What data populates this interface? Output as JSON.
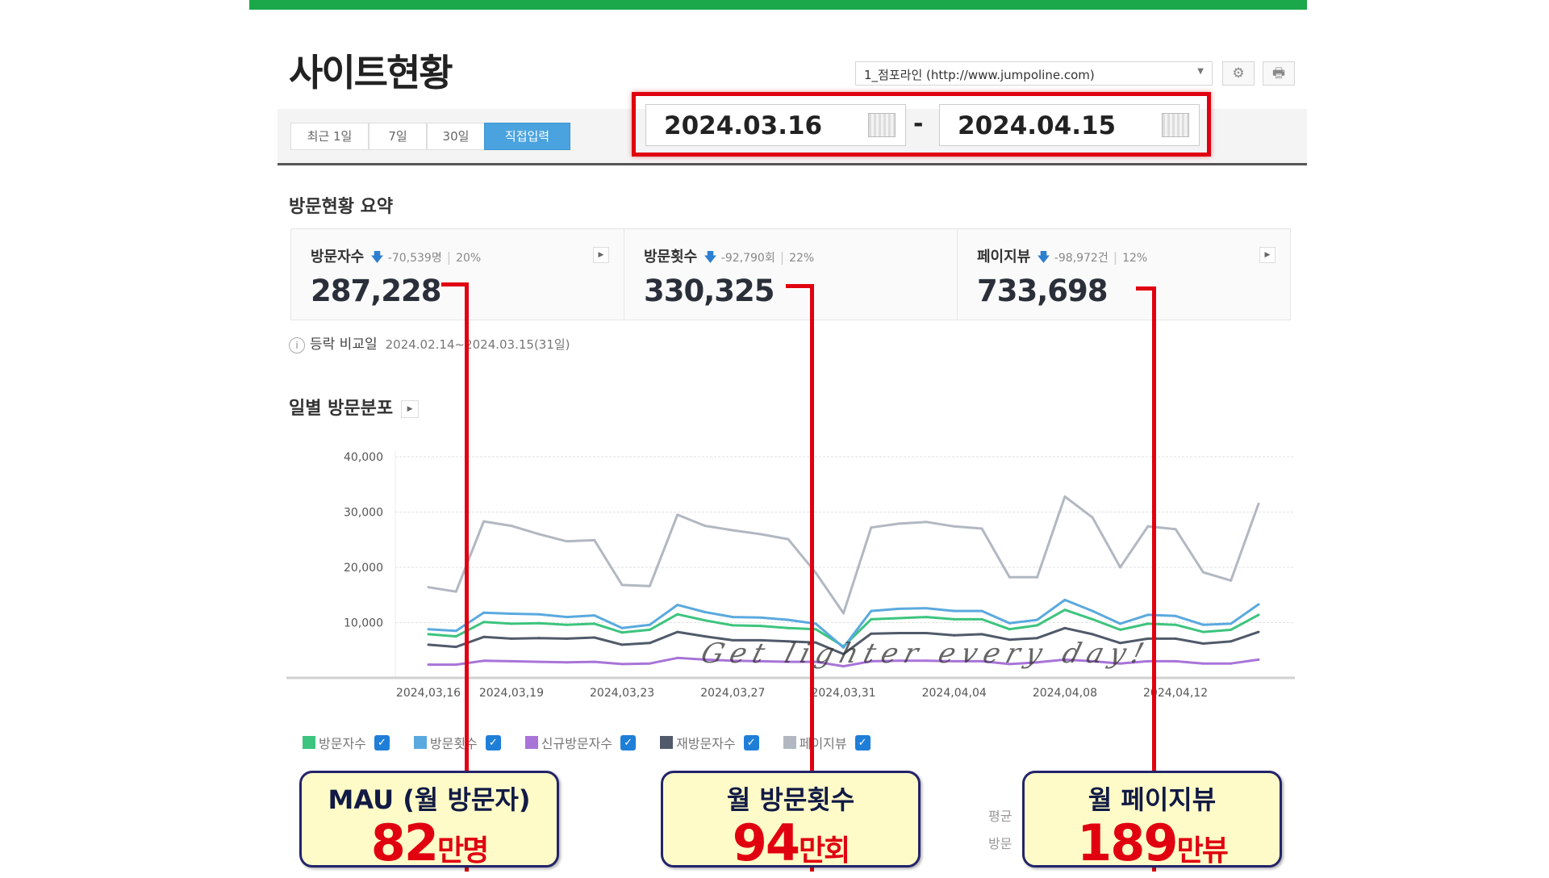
{
  "page_title": "사이트현황",
  "site_select": {
    "value": "1_점포라인 (http://www.jumpoline.com)"
  },
  "icons": {
    "settings": "gear-icon",
    "print": "print-icon",
    "calendar": "calendar-icon"
  },
  "period_buttons": [
    {
      "label": "최근 1일",
      "active": false
    },
    {
      "label": "7일",
      "active": false
    },
    {
      "label": "30일",
      "active": false
    },
    {
      "label": "직접입력",
      "active": true
    }
  ],
  "date_range": {
    "start": "2024.03.16",
    "separator": "-",
    "end": "2024.04.15"
  },
  "summary": {
    "title": "방문현황 요약",
    "cards": [
      {
        "label": "방문자수",
        "delta": "-70,539명",
        "pct": "20%",
        "value": "287,228"
      },
      {
        "label": "방문횟수",
        "delta": "-92,790회",
        "pct": "22%",
        "value": "330,325"
      },
      {
        "label": "페이지뷰",
        "delta": "-98,972건",
        "pct": "12%",
        "value": "733,698"
      }
    ],
    "compare_label": "등락 비교일",
    "compare_dates": "2024.02.14~2024.03.15(31일)"
  },
  "chart_section_title": "일별 방문분포",
  "chart_data": {
    "type": "line",
    "x": [
      "2024.03.16",
      "2024.03.17",
      "2024.03.18",
      "2024.03.19",
      "2024.03.20",
      "2024.03.21",
      "2024.03.22",
      "2024.03.23",
      "2024.03.24",
      "2024.03.25",
      "2024.03.26",
      "2024.03.27",
      "2024.03.28",
      "2024.03.29",
      "2024.03.30",
      "2024.03.31",
      "2024.04.01",
      "2024.04.02",
      "2024.04.03",
      "2024.04.04",
      "2024.04.05",
      "2024.04.06",
      "2024.04.07",
      "2024.04.08",
      "2024.04.09",
      "2024.04.10",
      "2024.04.11",
      "2024.04.12",
      "2024.04.13",
      "2024.04.14",
      "2024.04.15"
    ],
    "x_tick_labels": [
      "2024.03.16",
      "2024.03.19",
      "2024.03.23",
      "2024.03.27",
      "2024.03.31",
      "2024.04.04",
      "2024.04.08",
      "2024.04.12"
    ],
    "y_tick_labels": [
      "40,000",
      "30,000",
      "20,000",
      "10,000"
    ],
    "ylim": [
      0,
      40000
    ],
    "grid": true,
    "legend_position": "bottom-left",
    "series": [
      {
        "name": "방문자수",
        "color": "#3dc47e",
        "checked": true,
        "values": [
          7900,
          7500,
          10100,
          9800,
          9900,
          9600,
          9800,
          8200,
          8700,
          11500,
          10400,
          9500,
          9400,
          9000,
          8800,
          5700,
          10600,
          10800,
          11000,
          10600,
          10600,
          8800,
          9500,
          12300,
          10600,
          8700,
          9800,
          9600,
          8300,
          8700,
          11400
        ]
      },
      {
        "name": "방문횟수",
        "color": "#5aa9de",
        "checked": true,
        "values": [
          8800,
          8500,
          11800,
          11600,
          11500,
          11000,
          11300,
          9000,
          9600,
          13200,
          11900,
          11000,
          10900,
          10500,
          9800,
          5500,
          12100,
          12500,
          12600,
          12100,
          12100,
          9900,
          10500,
          14100,
          12100,
          9800,
          11400,
          11200,
          9600,
          9800,
          13300
        ]
      },
      {
        "name": "신규방문자수",
        "color": "#a874d8",
        "checked": true,
        "values": [
          2400,
          2400,
          3100,
          3000,
          2900,
          2800,
          2900,
          2500,
          2600,
          3600,
          3300,
          3100,
          3000,
          2900,
          2900,
          2100,
          3000,
          3100,
          3100,
          3000,
          3000,
          2500,
          2800,
          3300,
          3000,
          2600,
          3000,
          3000,
          2600,
          2600,
          3300
        ]
      },
      {
        "name": "재방문자수",
        "color": "#505a6a",
        "checked": true,
        "values": [
          6000,
          5600,
          7400,
          7100,
          7200,
          7100,
          7300,
          6000,
          6300,
          8300,
          7500,
          6800,
          6800,
          6600,
          6400,
          4300,
          8000,
          8100,
          8100,
          7700,
          7900,
          6900,
          7200,
          9000,
          7900,
          6300,
          7100,
          7100,
          6200,
          6600,
          8300
        ]
      },
      {
        "name": "페이지뷰",
        "color": "#b2b8c2",
        "checked": true,
        "values": [
          16400,
          15600,
          28300,
          27500,
          26000,
          24700,
          24900,
          16800,
          16600,
          29500,
          27500,
          26700,
          26000,
          25100,
          19000,
          11700,
          27200,
          27900,
          28200,
          27400,
          27000,
          18200,
          18200,
          32800,
          29000,
          20000,
          27400,
          26900,
          19100,
          17600,
          31500
        ]
      }
    ]
  },
  "watermark": "Get lighter every day!",
  "callouts": [
    {
      "title": "MAU (월 방문자)",
      "value": "82",
      "unit": "만명"
    },
    {
      "title": "월 방문횟수",
      "value": "94",
      "unit": "만회"
    },
    {
      "title": "월 페이지뷰",
      "value": "189",
      "unit": "만뷰"
    }
  ],
  "background_text": [
    "평균",
    "방문"
  ]
}
